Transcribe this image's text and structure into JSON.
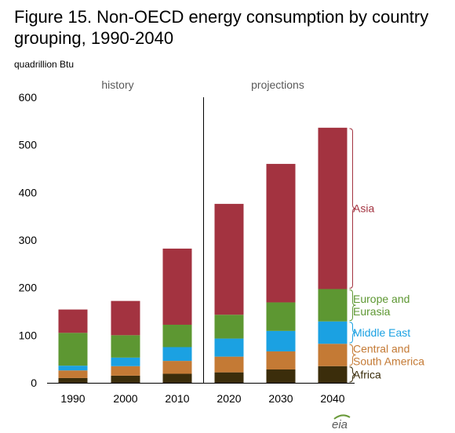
{
  "title": "Figure 15. Non-OECD energy consumption by country grouping, 1990-2040",
  "unit_label": "quadrillion  Btu",
  "logo_text": "eia",
  "chart_data": {
    "type": "bar",
    "stacked": true,
    "categories": [
      "1990",
      "2000",
      "2010",
      "2020",
      "2030",
      "2040"
    ],
    "section_labels": {
      "history": "history",
      "projections": "projections"
    },
    "ylim": [
      0,
      600
    ],
    "yticks": [
      0,
      100,
      200,
      300,
      400,
      500,
      600
    ],
    "series": [
      {
        "name": "Africa",
        "label_lines": [
          "Africa"
        ],
        "color": "#3b2d0b",
        "values": [
          10,
          15,
          19,
          22,
          28,
          35
        ]
      },
      {
        "name": "Central and South America",
        "label_lines": [
          "Central and",
          "South America"
        ],
        "color": "#c47a35",
        "values": [
          16,
          20,
          27,
          33,
          38,
          47
        ]
      },
      {
        "name": "Middle East",
        "label_lines": [
          "Middle East"
        ],
        "color": "#1ba1e2",
        "values": [
          10,
          18,
          29,
          38,
          43,
          47
        ]
      },
      {
        "name": "Europe and Eurasia",
        "label_lines": [
          "Europe and",
          "Eurasia"
        ],
        "color": "#5d9732",
        "values": [
          69,
          47,
          47,
          50,
          60,
          68
        ]
      },
      {
        "name": "Asia",
        "label_lines": [
          "Asia"
        ],
        "color": "#a33340",
        "values": [
          49,
          72,
          160,
          233,
          291,
          339
        ]
      }
    ]
  }
}
